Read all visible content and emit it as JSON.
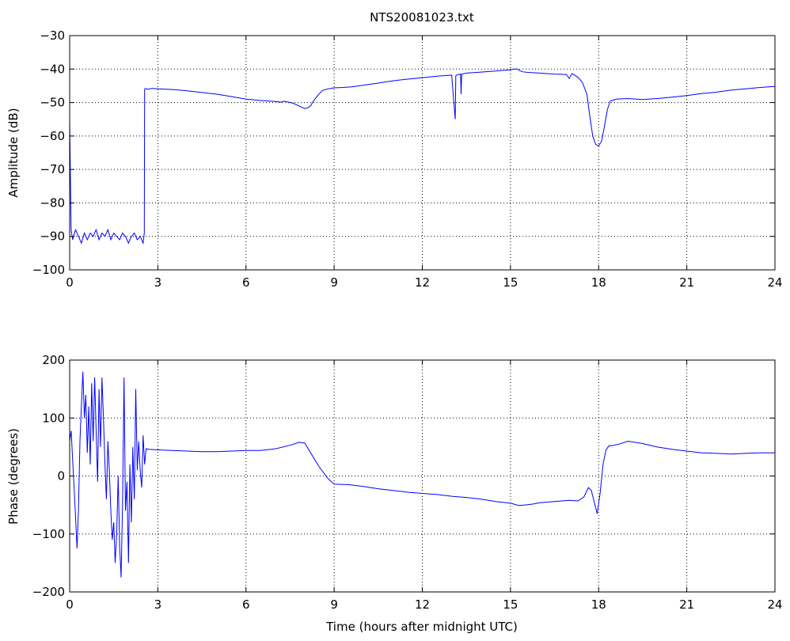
{
  "title": "NTS20081023.txt",
  "chart_data": [
    {
      "type": "line",
      "title": "NTS20081023.txt",
      "xlabel": "",
      "ylabel": "Amplitude (dB)",
      "xlim": [
        0,
        24
      ],
      "ylim": [
        -100,
        -30
      ],
      "xticks": [
        0,
        3,
        6,
        9,
        12,
        15,
        18,
        21,
        24
      ],
      "yticks": [
        -100,
        -90,
        -80,
        -70,
        -60,
        -50,
        -40,
        -30
      ],
      "grid": true,
      "color": "#0000ff",
      "series": [
        {
          "x": [
            0,
            0.05,
            0.1,
            0.2,
            0.3,
            0.4,
            0.5,
            0.6,
            0.7,
            0.8,
            0.9,
            1.0,
            1.1,
            1.2,
            1.3,
            1.4,
            1.5,
            1.6,
            1.7,
            1.8,
            1.9,
            2.0,
            2.1,
            2.2,
            2.3,
            2.4,
            2.5,
            2.54,
            2.55,
            2.58,
            2.65,
            2.8,
            3.0,
            3.5,
            4.0,
            4.5,
            5.0,
            5.5,
            6.0,
            6.5,
            7.0,
            7.2,
            7.3,
            7.6,
            7.8,
            8.0,
            8.1,
            8.2,
            8.3,
            8.45,
            8.6,
            8.8,
            9.0,
            9.3,
            9.6,
            10.0,
            10.5,
            11.0,
            11.5,
            12.0,
            12.5,
            13.0,
            13.12,
            13.14,
            13.16,
            13.3,
            13.32,
            13.34,
            13.5,
            14.0,
            14.5,
            15.0,
            15.2,
            15.4,
            15.6,
            16.0,
            16.5,
            16.9,
            17.0,
            17.1,
            17.3,
            17.45,
            17.6,
            17.7,
            17.8,
            17.9,
            18.0,
            18.1,
            18.2,
            18.3,
            18.4,
            18.6,
            19.0,
            19.5,
            20.0,
            20.5,
            21.0,
            21.5,
            22.0,
            22.5,
            23.0,
            23.5,
            24.0
          ],
          "y": [
            -56,
            -88,
            -91,
            -88,
            -90,
            -92,
            -89,
            -91,
            -89,
            -90,
            -88,
            -91,
            -89,
            -90,
            -88,
            -91,
            -89,
            -90,
            -91,
            -89,
            -90,
            -92,
            -90,
            -89,
            -91,
            -90,
            -92,
            -89,
            -46,
            -45.8,
            -46,
            -45.8,
            -45.9,
            -46.1,
            -46.5,
            -47,
            -47.5,
            -48.2,
            -49,
            -49.4,
            -49.7,
            -49.9,
            -49.6,
            -50.2,
            -51,
            -51.8,
            -51.6,
            -51,
            -49.5,
            -47.8,
            -46.4,
            -45.9,
            -45.6,
            -45.5,
            -45.3,
            -44.8,
            -44.2,
            -43.5,
            -43,
            -42.6,
            -42.1,
            -41.8,
            -55,
            -42,
            -41.8,
            -41.5,
            -47.5,
            -41.5,
            -41.2,
            -40.9,
            -40.6,
            -40.2,
            -39.9,
            -40.8,
            -41,
            -41.2,
            -41.5,
            -41.6,
            -42.8,
            -41.3,
            -42.5,
            -44,
            -47.5,
            -54,
            -60,
            -62.5,
            -63,
            -61.5,
            -57,
            -52,
            -49.5,
            -49,
            -48.8,
            -49.1,
            -48.8,
            -48.4,
            -47.9,
            -47.3,
            -46.9,
            -46.3,
            -45.9,
            -45.5,
            -45.2
          ]
        }
      ]
    },
    {
      "type": "line",
      "title": "",
      "xlabel": "Time (hours after midnight UTC)",
      "ylabel": "Phase (degrees)",
      "xlim": [
        0,
        24
      ],
      "ylim": [
        -200,
        200
      ],
      "xticks": [
        0,
        3,
        6,
        9,
        12,
        15,
        18,
        21,
        24
      ],
      "yticks": [
        -200,
        -100,
        0,
        100,
        200
      ],
      "grid": true,
      "color": "#0000ff",
      "series": [
        {
          "x": [
            0,
            0.05,
            0.1,
            0.15,
            0.2,
            0.25,
            0.3,
            0.35,
            0.4,
            0.45,
            0.5,
            0.55,
            0.6,
            0.65,
            0.7,
            0.75,
            0.8,
            0.85,
            0.9,
            0.95,
            1.0,
            1.05,
            1.1,
            1.15,
            1.2,
            1.25,
            1.3,
            1.35,
            1.4,
            1.45,
            1.5,
            1.55,
            1.6,
            1.65,
            1.7,
            1.75,
            1.8,
            1.85,
            1.9,
            1.95,
            2.0,
            2.05,
            2.1,
            2.15,
            2.2,
            2.25,
            2.3,
            2.35,
            2.4,
            2.45,
            2.5,
            2.55,
            2.6,
            2.7,
            3.0,
            3.5,
            4.0,
            4.5,
            5.0,
            5.5,
            6.0,
            6.5,
            7.0,
            7.5,
            7.8,
            8.0,
            8.2,
            8.5,
            8.8,
            9.0,
            9.5,
            10.0,
            10.5,
            11.0,
            11.5,
            12.0,
            12.5,
            13.0,
            13.5,
            14.0,
            14.5,
            15.0,
            15.3,
            15.5,
            15.8,
            16.0,
            16.5,
            17.0,
            17.3,
            17.5,
            17.65,
            17.75,
            17.85,
            17.95,
            18.05,
            18.15,
            18.25,
            18.35,
            18.5,
            18.7,
            19.0,
            19.5,
            20.0,
            20.5,
            21.0,
            21.5,
            22.0,
            22.5,
            23.0,
            23.5,
            24.0
          ],
          "y": [
            60,
            78,
            30,
            -20,
            -70,
            -125,
            -60,
            60,
            120,
            180,
            100,
            140,
            40,
            120,
            20,
            160,
            60,
            170,
            80,
            -10,
            150,
            50,
            170,
            100,
            20,
            -40,
            60,
            10,
            -60,
            -110,
            -80,
            -150,
            -100,
            0,
            -120,
            -175,
            -50,
            170,
            -60,
            -10,
            -150,
            20,
            -80,
            50,
            -40,
            150,
            10,
            60,
            10,
            -20,
            70,
            20,
            47,
            46,
            45,
            44,
            43,
            42,
            42,
            43,
            44,
            44,
            47,
            53,
            58,
            57,
            40,
            15,
            -5,
            -14,
            -15,
            -18,
            -22,
            -25,
            -28,
            -30,
            -32,
            -35,
            -37,
            -40,
            -44,
            -47,
            -51,
            -50,
            -48,
            -46,
            -44,
            -42,
            -43,
            -36,
            -20,
            -25,
            -45,
            -65,
            -30,
            20,
            45,
            52,
            53,
            55,
            60,
            56,
            50,
            46,
            43,
            40,
            39,
            38,
            39,
            40,
            40
          ]
        }
      ]
    }
  ]
}
